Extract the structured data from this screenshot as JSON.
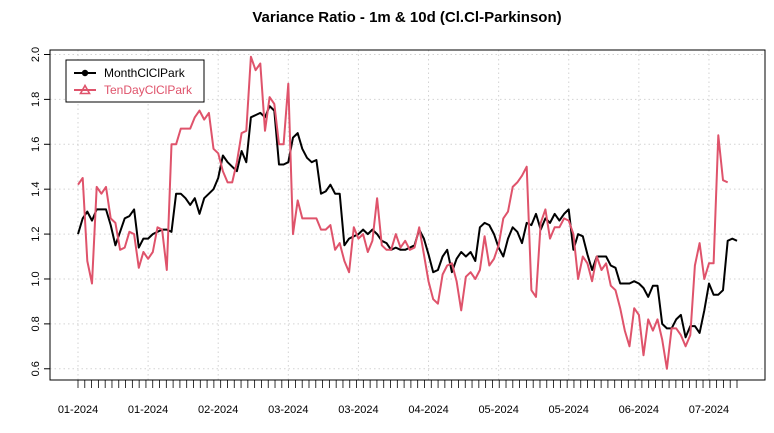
{
  "chart_data": {
    "type": "line",
    "title": "Variance Ratio - 1m & 10d (Cl.Cl-Parkinson)",
    "xlabel": "",
    "ylabel": "",
    "ylim": [
      0.55,
      2.02
    ],
    "yticks": [
      0.6,
      0.8,
      1.0,
      1.2,
      1.4,
      1.6,
      1.8,
      2.0
    ],
    "ytick_labels": [
      "0.6",
      "0.8",
      "1.0",
      "1.2",
      "1.4",
      "1.6",
      "1.8",
      "2.0"
    ],
    "xtick_labels": [
      "01-2024",
      "01-2024",
      "02-2024",
      "03-2024",
      "03-2024",
      "04-2024",
      "05-2024",
      "05-2024",
      "06-2024",
      "07-2024"
    ],
    "grid": true,
    "legend_position": "top-left",
    "colors": {
      "month": "#000000",
      "tenday": "#DF536B",
      "grid": "#D3D3D3"
    },
    "series": [
      {
        "name": "MonthClClPark",
        "marker": "circle",
        "values": [
          1.2,
          1.27,
          1.3,
          1.26,
          1.31,
          1.31,
          1.31,
          1.24,
          1.15,
          1.21,
          1.27,
          1.28,
          1.31,
          1.14,
          1.18,
          1.18,
          1.2,
          1.21,
          1.22,
          1.22,
          1.21,
          1.38,
          1.38,
          1.36,
          1.33,
          1.36,
          1.29,
          1.36,
          1.38,
          1.4,
          1.45,
          1.55,
          1.52,
          1.5,
          1.48,
          1.57,
          1.52,
          1.72,
          1.73,
          1.74,
          1.72,
          1.77,
          1.75,
          1.51,
          1.51,
          1.52,
          1.63,
          1.65,
          1.58,
          1.54,
          1.52,
          1.53,
          1.38,
          1.39,
          1.42,
          1.38,
          1.38,
          1.15,
          1.18,
          1.19,
          1.2,
          1.22,
          1.2,
          1.22,
          1.2,
          1.17,
          1.16,
          1.13,
          1.14,
          1.13,
          1.13,
          1.14,
          1.15,
          1.22,
          1.18,
          1.11,
          1.03,
          1.04,
          1.1,
          1.13,
          1.03,
          1.09,
          1.12,
          1.1,
          1.12,
          1.08,
          1.23,
          1.25,
          1.24,
          1.2,
          1.14,
          1.1,
          1.18,
          1.23,
          1.21,
          1.16,
          1.25,
          1.24,
          1.29,
          1.22,
          1.27,
          1.25,
          1.29,
          1.26,
          1.29,
          1.31,
          1.13,
          1.2,
          1.19,
          1.11,
          1.04,
          1.1,
          1.1,
          1.1,
          1.06,
          1.05,
          0.98,
          0.98,
          0.98,
          0.99,
          0.98,
          0.96,
          0.92,
          0.97,
          0.97,
          0.8,
          0.78,
          0.78,
          0.82,
          0.84,
          0.74,
          0.79,
          0.79,
          0.76,
          0.86,
          0.98,
          0.93,
          0.93,
          0.95,
          1.17,
          1.18,
          1.17
        ]
      },
      {
        "name": "TenDayClClPark",
        "marker": "triangle",
        "values": [
          1.42,
          1.45,
          1.08,
          0.98,
          1.41,
          1.38,
          1.41,
          1.27,
          1.25,
          1.13,
          1.14,
          1.21,
          1.2,
          1.05,
          1.12,
          1.09,
          1.12,
          1.23,
          1.22,
          1.04,
          1.6,
          1.6,
          1.67,
          1.67,
          1.67,
          1.72,
          1.75,
          1.71,
          1.74,
          1.58,
          1.56,
          1.48,
          1.43,
          1.43,
          1.52,
          1.65,
          1.66,
          1.99,
          1.93,
          1.96,
          1.66,
          1.81,
          1.78,
          1.6,
          1.6,
          1.87,
          1.2,
          1.35,
          1.27,
          1.27,
          1.27,
          1.27,
          1.22,
          1.22,
          1.24,
          1.13,
          1.16,
          1.08,
          1.03,
          1.23,
          1.18,
          1.2,
          1.12,
          1.17,
          1.36,
          1.15,
          1.13,
          1.13,
          1.2,
          1.14,
          1.17,
          1.13,
          1.14,
          1.23,
          1.11,
          0.99,
          0.91,
          0.89,
          1.02,
          1.06,
          1.07,
          0.99,
          0.86,
          1.01,
          1.03,
          1.0,
          1.04,
          1.19,
          1.06,
          1.09,
          1.15,
          1.27,
          1.3,
          1.41,
          1.43,
          1.46,
          1.5,
          0.95,
          0.92,
          1.25,
          1.31,
          1.18,
          1.23,
          1.23,
          1.27,
          1.26,
          1.2,
          1.0,
          1.1,
          1.07,
          0.99,
          1.1,
          1.04,
          1.07,
          0.97,
          0.95,
          0.87,
          0.77,
          0.7,
          0.87,
          0.84,
          0.66,
          0.82,
          0.77,
          0.82,
          0.73,
          0.6,
          0.78,
          0.78,
          0.75,
          0.7,
          0.75,
          1.06,
          1.16,
          1.0,
          1.07,
          1.07,
          1.64,
          1.44,
          1.43
        ]
      }
    ]
  }
}
